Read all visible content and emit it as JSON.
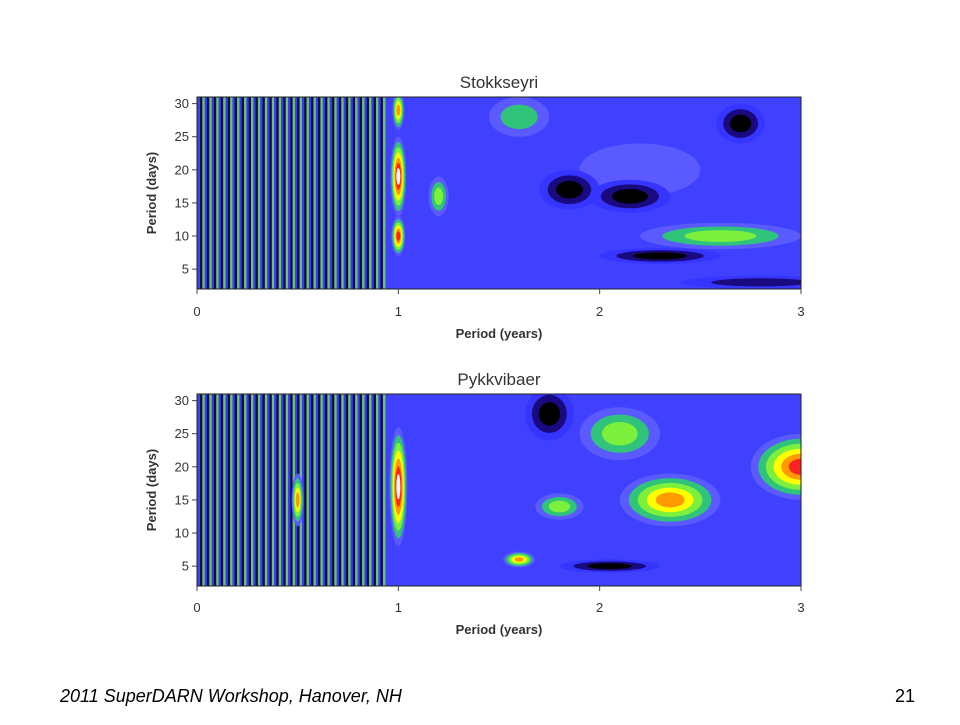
{
  "footer": {
    "text": "2011 SuperDARN Workshop, Hanover, NH",
    "page_number": "21"
  },
  "chart_data": [
    {
      "type": "heatmap",
      "title": "Stokkseyri",
      "xlabel": "Period (years)",
      "ylabel": "Period (days)",
      "x_ticks": [
        "0",
        "1",
        "2",
        "3"
      ],
      "y_ticks": [
        "5",
        "10",
        "15",
        "20",
        "25",
        "30"
      ],
      "xlim": [
        0,
        3
      ],
      "ylim": [
        2,
        31
      ],
      "colormap": [
        "#000000",
        "#1a0a80",
        "#3535ff",
        "#5a5aff",
        "#2fc47a",
        "#7cf03c",
        "#ffff00",
        "#ff9a00",
        "#ff2020",
        "#ffffff"
      ],
      "base_color": "#4040ff",
      "features": [
        {
          "x": 1.0,
          "y": 19,
          "sx": 0.04,
          "sy": 6,
          "level": 9
        },
        {
          "x": 1.0,
          "y": 10,
          "sx": 0.035,
          "sy": 3,
          "level": 8.5
        },
        {
          "x": 1.0,
          "y": 29,
          "sx": 0.03,
          "sy": 3,
          "level": 7
        },
        {
          "x": 1.2,
          "y": 16,
          "sx": 0.05,
          "sy": 3,
          "level": 5
        },
        {
          "x": 2.6,
          "y": 10,
          "sx": 0.4,
          "sy": 2,
          "level": 5.5
        },
        {
          "x": 2.2,
          "y": 20,
          "sx": 0.3,
          "sy": 4,
          "level": 3
        },
        {
          "x": 1.85,
          "y": 17,
          "sx": 0.15,
          "sy": 3,
          "level": 0
        },
        {
          "x": 2.15,
          "y": 16,
          "sx": 0.2,
          "sy": 2.5,
          "level": 0
        },
        {
          "x": 2.7,
          "y": 27,
          "sx": 0.12,
          "sy": 3,
          "level": 0
        },
        {
          "x": 2.3,
          "y": 7,
          "sx": 0.3,
          "sy": 1.2,
          "level": 0
        },
        {
          "x": 2.8,
          "y": 3,
          "sx": 0.4,
          "sy": 1,
          "level": 0.5
        },
        {
          "x": 1.6,
          "y": 28,
          "sx": 0.15,
          "sy": 3,
          "level": 4.5
        }
      ]
    },
    {
      "type": "heatmap",
      "title": "Pykkvibaer",
      "xlabel": "Period (years)",
      "ylabel": "Period (days)",
      "x_ticks": [
        "0",
        "1",
        "2",
        "3"
      ],
      "y_ticks": [
        "5",
        "10",
        "15",
        "20",
        "25",
        "30"
      ],
      "xlim": [
        0,
        3
      ],
      "ylim": [
        2,
        31
      ],
      "colormap": [
        "#000000",
        "#1a0a80",
        "#3535ff",
        "#5a5aff",
        "#2fc47a",
        "#7cf03c",
        "#ffff00",
        "#ff9a00",
        "#ff2020",
        "#ffffff"
      ],
      "base_color": "#4040ff",
      "features": [
        {
          "x": 1.0,
          "y": 17,
          "sx": 0.045,
          "sy": 9,
          "level": 9.2
        },
        {
          "x": 0.5,
          "y": 15,
          "sx": 0.03,
          "sy": 4,
          "level": 7.5
        },
        {
          "x": 1.6,
          "y": 6,
          "sx": 0.08,
          "sy": 1.2,
          "level": 7.5
        },
        {
          "x": 2.35,
          "y": 15,
          "sx": 0.25,
          "sy": 4,
          "level": 7
        },
        {
          "x": 3.0,
          "y": 20,
          "sx": 0.25,
          "sy": 5,
          "level": 8
        },
        {
          "x": 2.1,
          "y": 25,
          "sx": 0.2,
          "sy": 4,
          "level": 5
        },
        {
          "x": 1.8,
          "y": 14,
          "sx": 0.12,
          "sy": 2,
          "level": 5.5
        },
        {
          "x": 1.75,
          "y": 28,
          "sx": 0.12,
          "sy": 4,
          "level": 0
        },
        {
          "x": 2.05,
          "y": 5,
          "sx": 0.25,
          "sy": 1.0,
          "level": 0
        },
        {
          "x": 2.6,
          "y": 29,
          "sx": 0.2,
          "sy": 2,
          "level": 2.5
        }
      ]
    }
  ]
}
